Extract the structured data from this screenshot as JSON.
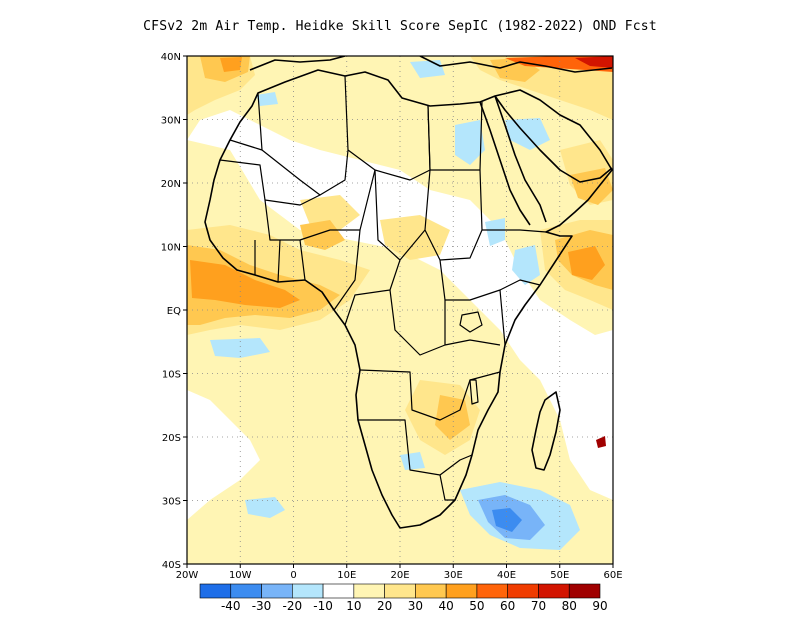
{
  "title": "CFSv2  2m Air Temp. Heidke Skill Score SepIC (1982-2022) OND Fcst",
  "map": {
    "lat_labels": [
      "40N",
      "30N",
      "20N",
      "10N",
      "EQ",
      "10S",
      "20S",
      "30S",
      "40S"
    ],
    "lon_labels": [
      "20W",
      "10W",
      "0",
      "10E",
      "20E",
      "30E",
      "40E",
      "50E",
      "60E"
    ],
    "lat_range": [
      -40,
      40
    ],
    "lon_range": [
      -20,
      60
    ],
    "grid": "dotted"
  },
  "colorbar": {
    "labels": [
      "-40",
      "-30",
      "-20",
      "-10",
      "10",
      "20",
      "30",
      "40",
      "50",
      "60",
      "70",
      "80",
      "90"
    ],
    "colors": [
      "#1e6ee8",
      "#3c8cf0",
      "#78b4f8",
      "#b4e6fc",
      "#ffffff",
      "#fff5b4",
      "#ffe68c",
      "#ffc850",
      "#ffa01e",
      "#ff640a",
      "#f03c00",
      "#d21400",
      "#a00000"
    ]
  },
  "palette": {
    "coast": "#000000",
    "light_yellow": "#fff5b4",
    "yellow": "#ffe68c",
    "orange": "#ffc850",
    "dark_orange": "#ffa01e",
    "red_orange": "#ff640a",
    "light_blue": "#b4e6fc",
    "blue": "#78b4f8",
    "dark_blue": "#3c8cf0"
  }
}
